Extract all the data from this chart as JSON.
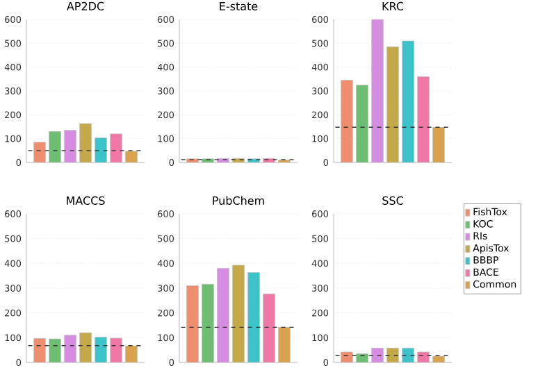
{
  "chart_data": [
    {
      "type": "bar",
      "title": "AP2DC",
      "categories": [
        null
      ],
      "ylim": [
        0,
        600
      ],
      "yticks": [
        0,
        100,
        200,
        300,
        400,
        500,
        600
      ],
      "grid": "y",
      "tick_labels": "y",
      "ref_lines": [
        {
          "axis": "y",
          "value": 50,
          "line_style": "dashed",
          "color": "#333333"
        }
      ],
      "series": [
        {
          "color": "#ee8e6f",
          "values": [
            85
          ]
        },
        {
          "color": "#6dbd72",
          "values": [
            130
          ]
        },
        {
          "color": "#d68ce0",
          "values": [
            135
          ]
        },
        {
          "color": "#c4a94a",
          "values": [
            163
          ]
        },
        {
          "color": "#3cc2c8",
          "values": [
            103
          ]
        },
        {
          "color": "#ef78a6",
          "values": [
            120
          ]
        },
        {
          "color": "#d9a24e",
          "values": [
            47
          ]
        }
      ]
    },
    {
      "type": "bar",
      "title": "E-state",
      "categories": [
        null
      ],
      "ylim": [
        0,
        600
      ],
      "yticks": [
        0,
        100,
        200,
        300,
        400,
        500,
        600
      ],
      "grid": "y",
      "tick_labels": "y",
      "ref_lines": [
        {
          "axis": "y",
          "value": 12,
          "line_style": "dashed",
          "color": "#333333"
        }
      ],
      "series": [
        {
          "color": "#ee8e6f",
          "values": [
            15
          ]
        },
        {
          "color": "#6dbd72",
          "values": [
            15
          ]
        },
        {
          "color": "#d68ce0",
          "values": [
            17
          ]
        },
        {
          "color": "#c4a94a",
          "values": [
            17
          ]
        },
        {
          "color": "#3cc2c8",
          "values": [
            15
          ]
        },
        {
          "color": "#ef78a6",
          "values": [
            17
          ]
        },
        {
          "color": "#d9a24e",
          "values": [
            10
          ]
        }
      ]
    },
    {
      "type": "bar",
      "title": "KRC",
      "categories": [
        null
      ],
      "ylim": [
        0,
        600
      ],
      "yticks": [
        0,
        100,
        200,
        300,
        400,
        500,
        600
      ],
      "grid": "y",
      "tick_labels": "y",
      "ref_lines": [
        {
          "axis": "y",
          "value": 148,
          "line_style": "dashed",
          "color": "#333333"
        }
      ],
      "series": [
        {
          "color": "#ee8e6f",
          "values": [
            345
          ]
        },
        {
          "color": "#6dbd72",
          "values": [
            325
          ]
        },
        {
          "color": "#d68ce0",
          "values": [
            600
          ]
        },
        {
          "color": "#c4a94a",
          "values": [
            485
          ]
        },
        {
          "color": "#3cc2c8",
          "values": [
            510
          ]
        },
        {
          "color": "#ef78a6",
          "values": [
            360
          ]
        },
        {
          "color": "#d9a24e",
          "values": [
            148
          ]
        }
      ]
    },
    {
      "type": "bar",
      "title": "MACCS",
      "categories": [
        null
      ],
      "ylim": [
        0,
        600
      ],
      "yticks": [
        0,
        100,
        200,
        300,
        400,
        500,
        600
      ],
      "grid": "y",
      "tick_labels": "y",
      "ref_lines": [
        {
          "axis": "y",
          "value": 68,
          "line_style": "dashed",
          "color": "#333333"
        }
      ],
      "series": [
        {
          "color": "#ee8e6f",
          "values": [
            97
          ]
        },
        {
          "color": "#6dbd72",
          "values": [
            95
          ]
        },
        {
          "color": "#d68ce0",
          "values": [
            110
          ]
        },
        {
          "color": "#c4a94a",
          "values": [
            120
          ]
        },
        {
          "color": "#3cc2c8",
          "values": [
            102
          ]
        },
        {
          "color": "#ef78a6",
          "values": [
            98
          ]
        },
        {
          "color": "#d9a24e",
          "values": [
            67
          ]
        }
      ]
    },
    {
      "type": "bar",
      "title": "PubChem",
      "categories": [
        null
      ],
      "ylim": [
        0,
        600
      ],
      "yticks": [
        0,
        100,
        200,
        300,
        400,
        500,
        600
      ],
      "grid": "y",
      "tick_labels": "y",
      "ref_lines": [
        {
          "axis": "y",
          "value": 142,
          "line_style": "dashed",
          "color": "#333333"
        }
      ],
      "series": [
        {
          "color": "#ee8e6f",
          "values": [
            310
          ]
        },
        {
          "color": "#6dbd72",
          "values": [
            316
          ]
        },
        {
          "color": "#d68ce0",
          "values": [
            380
          ]
        },
        {
          "color": "#c4a94a",
          "values": [
            393
          ]
        },
        {
          "color": "#3cc2c8",
          "values": [
            363
          ]
        },
        {
          "color": "#ef78a6",
          "values": [
            277
          ]
        },
        {
          "color": "#d9a24e",
          "values": [
            142
          ]
        }
      ]
    },
    {
      "type": "bar",
      "title": "SSC",
      "categories": [
        null
      ],
      "ylim": [
        0,
        600
      ],
      "yticks": [
        0,
        100,
        200,
        300,
        400,
        500,
        600
      ],
      "grid": "y",
      "tick_labels": "y",
      "legend": "right",
      "ref_lines": [
        {
          "axis": "y",
          "value": 28,
          "line_style": "dashed",
          "color": "#333333"
        }
      ],
      "series": [
        {
          "name": "FishTox",
          "color": "#ee8e6f",
          "values": [
            42
          ]
        },
        {
          "name": "KOC",
          "color": "#6dbd72",
          "values": [
            35
          ]
        },
        {
          "name": "RIs",
          "color": "#d68ce0",
          "values": [
            58
          ]
        },
        {
          "name": "ApisTox",
          "color": "#c4a94a",
          "values": [
            58
          ]
        },
        {
          "name": "BBBP",
          "color": "#3cc2c8",
          "values": [
            58
          ]
        },
        {
          "name": "BACE",
          "color": "#ef78a6",
          "values": [
            42
          ]
        },
        {
          "name": "Common",
          "color": "#d9a24e",
          "values": [
            25
          ]
        }
      ]
    }
  ]
}
